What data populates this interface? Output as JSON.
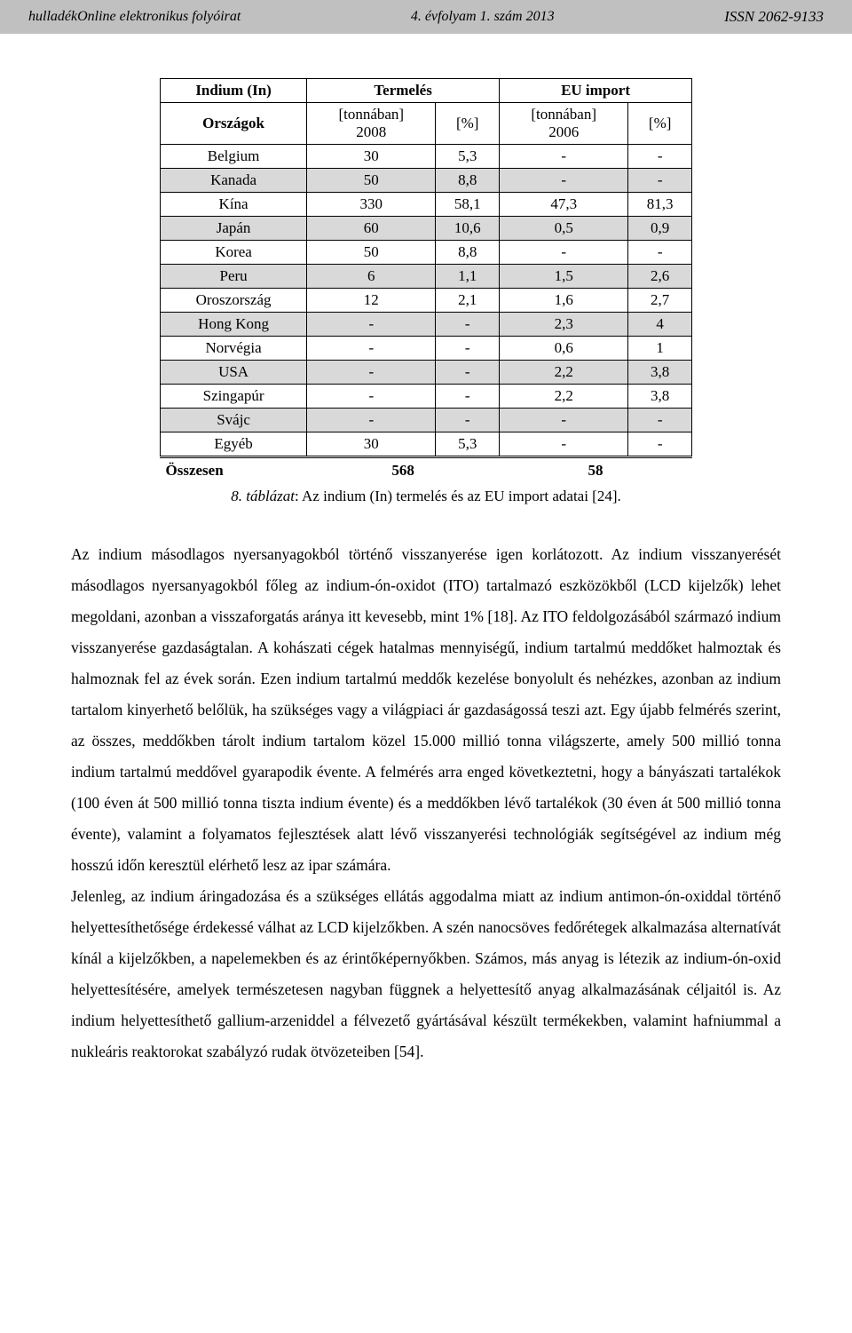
{
  "header": {
    "left": "hulladékOnline elektronikus folyóirat",
    "center": "4. évfolyam 1. szám 2013",
    "right": "ISSN 2062-9133"
  },
  "table": {
    "type": "table",
    "title_row1": {
      "c0": "Indium (In)",
      "c1": "Termelés",
      "c2": "EU import"
    },
    "title_row2": {
      "c0": "Országok",
      "c1": "[tonnában]\n2008",
      "c2": "[%]",
      "c3": "[tonnában]\n2006",
      "c4": "[%]"
    },
    "rows": [
      {
        "shaded": false,
        "c0": "Belgium",
        "c1": "30",
        "c2": "5,3",
        "c3": "-",
        "c4": "-"
      },
      {
        "shaded": true,
        "c0": "Kanada",
        "c1": "50",
        "c2": "8,8",
        "c3": "-",
        "c4": "-"
      },
      {
        "shaded": false,
        "c0": "Kína",
        "c1": "330",
        "c2": "58,1",
        "c3": "47,3",
        "c4": "81,3"
      },
      {
        "shaded": true,
        "c0": "Japán",
        "c1": "60",
        "c2": "10,6",
        "c3": "0,5",
        "c4": "0,9"
      },
      {
        "shaded": false,
        "c0": "Korea",
        "c1": "50",
        "c2": "8,8",
        "c3": "-",
        "c4": "-"
      },
      {
        "shaded": true,
        "c0": "Peru",
        "c1": "6",
        "c2": "1,1",
        "c3": "1,5",
        "c4": "2,6"
      },
      {
        "shaded": false,
        "c0": "Oroszország",
        "c1": "12",
        "c2": "2,1",
        "c3": "1,6",
        "c4": "2,7"
      },
      {
        "shaded": true,
        "c0": "Hong Kong",
        "c1": "-",
        "c2": "-",
        "c3": "2,3",
        "c4": "4"
      },
      {
        "shaded": false,
        "c0": "Norvégia",
        "c1": "-",
        "c2": "-",
        "c3": "0,6",
        "c4": "1"
      },
      {
        "shaded": true,
        "c0": "USA",
        "c1": "-",
        "c2": "-",
        "c3": "2,2",
        "c4": "3,8"
      },
      {
        "shaded": false,
        "c0": "Szingapúr",
        "c1": "-",
        "c2": "-",
        "c3": "2,2",
        "c4": "3,8"
      },
      {
        "shaded": true,
        "c0": "Svájc",
        "c1": "-",
        "c2": "-",
        "c3": "-",
        "c4": "-"
      },
      {
        "shaded": false,
        "c0": "Egyéb",
        "c1": "30",
        "c2": "5,3",
        "c3": "-",
        "c4": "-"
      }
    ],
    "summary": {
      "label": "Összesen",
      "v1": "568",
      "v2": "58"
    },
    "caption_label": "8. táblázat",
    "caption_title": ": Az indium (In) termelés és az EU import adatai [24].",
    "colors": {
      "shaded_bg": "#d9d9d9",
      "border": "#000000",
      "header_bg": "#c0c0c0"
    }
  },
  "paragraphs": {
    "p1": "Az indium másodlagos nyersanyagokból történő visszanyerése igen korlátozott. Az indium visszanyerését másodlagos nyersanyagokból főleg az indium-ón-oxidot (ITO) tartalmazó eszközökből (LCD kijelzők) lehet megoldani, azonban a visszaforgatás aránya itt kevesebb, mint 1% [18]. Az ITO feldolgozásából származó indium visszanyerése gazdaságtalan. A kohászati cégek hatalmas mennyiségű, indium tartalmú meddőket halmoztak és halmoznak fel az évek során. Ezen indium tartalmú meddők kezelése bonyolult és nehézkes, azonban az indium tartalom kinyerhető belőlük, ha szükséges vagy a világpiaci ár gazdaságossá teszi azt. Egy újabb felmérés szerint, az összes, meddőkben tárolt indium tartalom közel 15.000 millió tonna világszerte, amely 500 millió tonna indium tartalmú meddővel gyarapodik évente. A felmérés arra enged következtetni, hogy a bányászati tartalékok (100 éven át 500 millió tonna tiszta indium évente) és a meddőkben lévő tartalékok (30 éven át 500 millió tonna évente), valamint a folyamatos fejlesztések alatt lévő visszanyerési technológiák segítségével az indium még hosszú időn keresztül elérhető lesz az ipar számára.",
    "p2": "Jelenleg, az indium áringadozása és a szükséges ellátás aggodalma miatt az indium antimon-ón-oxiddal történő helyettesíthetősége érdekessé válhat az LCD kijelzőkben. A szén nanocsöves fedőrétegek alkalmazása alternatívát kínál a kijelzőkben, a napelemekben és az érintőképernyőkben. Számos, más anyag is létezik az indium-ón-oxid helyettesítésére, amelyek természetesen nagyban függnek a helyettesítő anyag alkalmazásának céljaitól is. Az indium helyettesíthető gallium-arzeniddel a félvezető gyártásával készült termékekben, valamint hafniummal a nukleáris reaktorokat szabályzó rudak ötvözeteiben [54]."
  }
}
